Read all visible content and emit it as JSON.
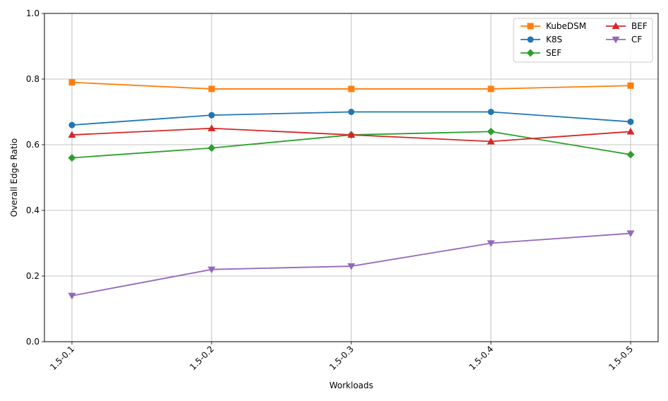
{
  "chart_data": {
    "type": "line",
    "xlabel": "Workloads",
    "ylabel": "Overall Edge Ratio",
    "categories": [
      "1.5-0.1",
      "1.5-0.2",
      "1.5-0.3",
      "1.5-0.4",
      "1.5-0.5"
    ],
    "ylim": [
      0,
      1.0
    ],
    "yticks": [
      "0.0",
      "0.2",
      "0.4",
      "0.6",
      "0.8",
      "1.0"
    ],
    "grid": true,
    "legend_position": "top-right",
    "series": [
      {
        "name": "KubeDSM",
        "color": "#ff7f0e",
        "marker": "square",
        "values": [
          0.79,
          0.77,
          0.77,
          0.77,
          0.78
        ]
      },
      {
        "name": "K8S",
        "color": "#1f77b4",
        "marker": "circle",
        "values": [
          0.66,
          0.69,
          0.7,
          0.7,
          0.67
        ]
      },
      {
        "name": "SEF",
        "color": "#2ca02c",
        "marker": "diamond",
        "values": [
          0.56,
          0.59,
          0.63,
          0.64,
          0.57
        ]
      },
      {
        "name": "BEF",
        "color": "#d62728",
        "marker": "triangle-up",
        "values": [
          0.63,
          0.65,
          0.63,
          0.61,
          0.64
        ]
      },
      {
        "name": "CF",
        "color": "#9467bd",
        "marker": "triangle-down",
        "values": [
          0.14,
          0.22,
          0.23,
          0.3,
          0.33
        ]
      }
    ]
  }
}
